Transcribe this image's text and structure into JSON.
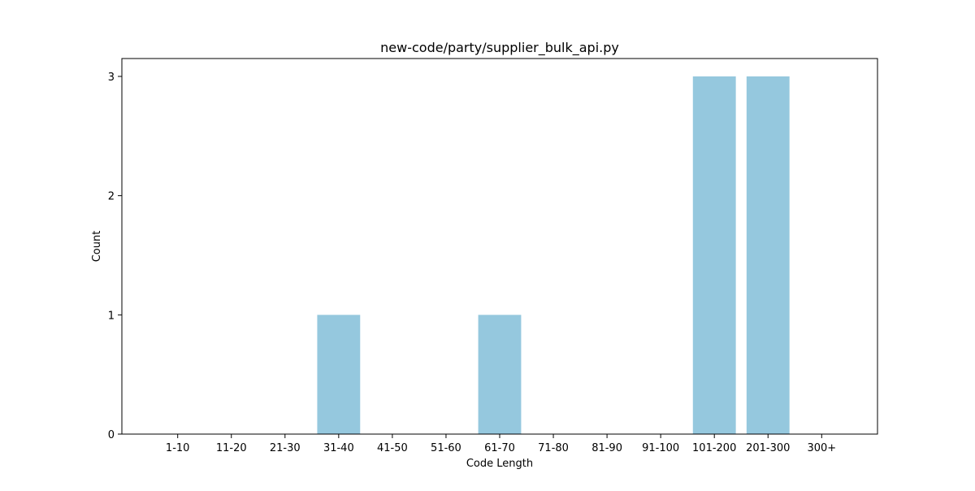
{
  "chart_data": {
    "type": "bar",
    "title": "new-code/party/supplier_bulk_api.py",
    "xlabel": "Code Length",
    "ylabel": "Count",
    "categories": [
      "1-10",
      "11-20",
      "21-30",
      "31-40",
      "41-50",
      "51-60",
      "61-70",
      "71-80",
      "81-90",
      "91-100",
      "101-200",
      "201-300",
      "300+"
    ],
    "values": [
      0,
      0,
      0,
      1,
      0,
      0,
      1,
      0,
      0,
      0,
      3,
      3,
      0
    ],
    "ylim": [
      0,
      3.15
    ],
    "yticks": [
      0,
      1,
      2,
      3
    ],
    "bar_color": "#95c8de",
    "grid": false,
    "legend": "none"
  }
}
